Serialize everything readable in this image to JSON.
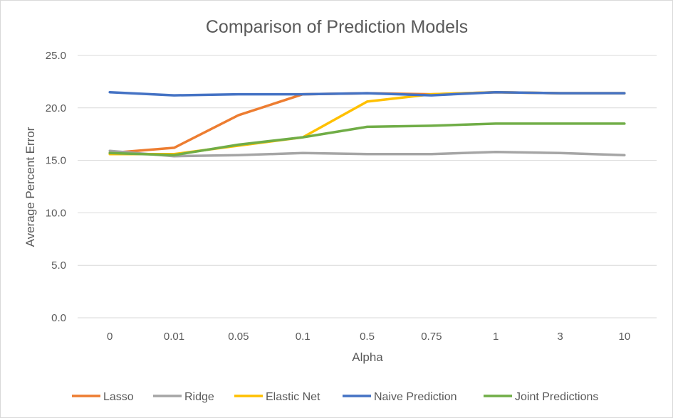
{
  "chart_data": {
    "type": "line",
    "title": "Comparison of Prediction Models",
    "xlabel": "Alpha",
    "ylabel": "Average Percent Error",
    "categories": [
      "0",
      "0.01",
      "0.05",
      "0.1",
      "0.5",
      "0.75",
      "1",
      "3",
      "10"
    ],
    "ylim": [
      0,
      25
    ],
    "yticks": [
      "0.0",
      "5.0",
      "10.0",
      "15.0",
      "20.0",
      "25.0"
    ],
    "grid": true,
    "legend_position": "bottom",
    "series": [
      {
        "name": "Lasso",
        "color": "#ed7d31",
        "values": [
          15.7,
          16.2,
          19.3,
          21.3,
          21.4,
          21.3,
          21.5,
          21.4,
          21.4
        ]
      },
      {
        "name": "Ridge",
        "color": "#a5a5a5",
        "values": [
          15.9,
          15.4,
          15.5,
          15.7,
          15.6,
          15.6,
          15.8,
          15.7,
          15.5
        ]
      },
      {
        "name": "Elastic Net",
        "color": "#ffc000",
        "values": [
          15.6,
          15.6,
          16.4,
          17.2,
          20.6,
          21.3,
          21.5,
          21.4,
          21.4
        ]
      },
      {
        "name": "Naive Prediction",
        "color": "#4472c4",
        "values": [
          21.5,
          21.2,
          21.3,
          21.3,
          21.4,
          21.2,
          21.5,
          21.4,
          21.4
        ]
      },
      {
        "name": "Joint Predictions",
        "color": "#70ad47",
        "values": [
          15.7,
          15.5,
          16.5,
          17.2,
          18.2,
          18.3,
          18.5,
          18.5,
          18.5
        ]
      }
    ]
  }
}
